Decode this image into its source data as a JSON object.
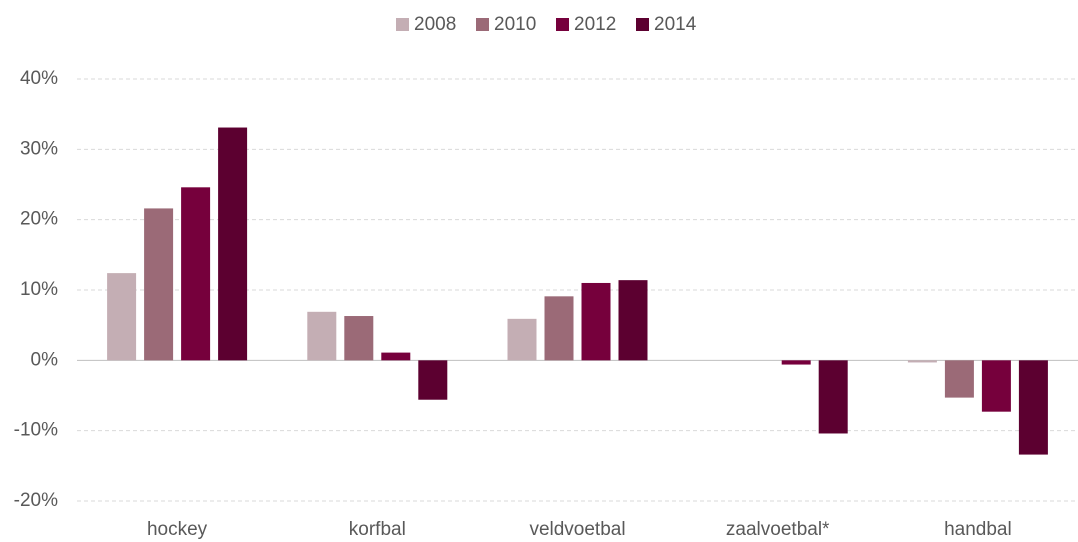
{
  "chart_data": {
    "type": "bar",
    "categories": [
      "hockey",
      "korfbal",
      "veldvoetbal",
      "zaalvoetbal*",
      "handbal"
    ],
    "series": [
      {
        "name": "2008",
        "color": "#c4aeb4",
        "values": [
          12.4,
          6.9,
          5.9,
          0,
          -0.3
        ]
      },
      {
        "name": "2010",
        "color": "#9b6a77",
        "values": [
          21.6,
          6.3,
          9.1,
          0,
          -5.3
        ]
      },
      {
        "name": "2012",
        "color": "#76003c",
        "values": [
          24.6,
          1.1,
          11.0,
          -0.6,
          -7.3
        ]
      },
      {
        "name": "2014",
        "color": "#5c0030",
        "values": [
          33.1,
          -5.6,
          11.4,
          -10.4,
          -13.4
        ]
      }
    ],
    "ylim": [
      -20,
      40
    ],
    "yticks": [
      {
        "value": -20,
        "label": "-20%"
      },
      {
        "value": -10,
        "label": "-10%"
      },
      {
        "value": 0,
        "label": "0%"
      },
      {
        "value": 10,
        "label": "10%"
      },
      {
        "value": 20,
        "label": "20%"
      },
      {
        "value": 30,
        "label": "30%"
      },
      {
        "value": 40,
        "label": "40%"
      }
    ],
    "grid": true,
    "legend": "top"
  }
}
